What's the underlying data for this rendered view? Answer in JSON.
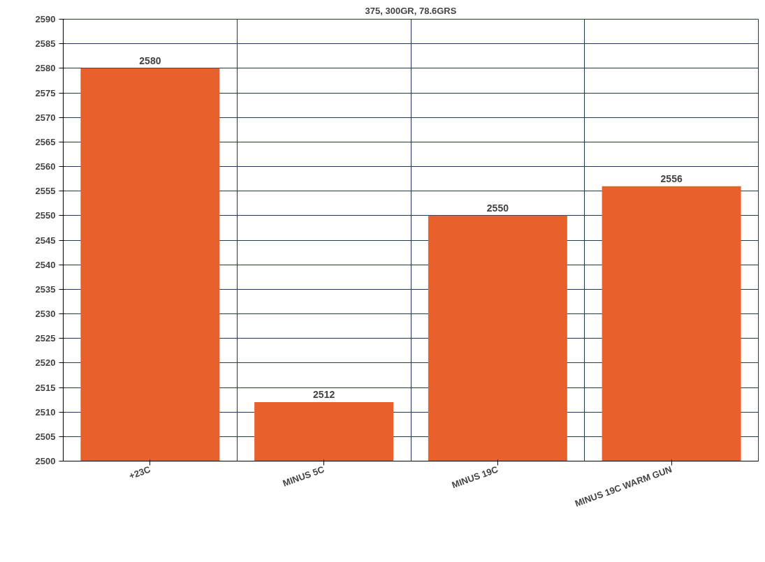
{
  "chart_data": {
    "type": "bar",
    "title": "375, 300GR, 78.6GRS",
    "categories": [
      "+23C",
      "MINUS 5C",
      "MINUS 19C",
      "MINUS 19C WARM GUN"
    ],
    "values": [
      2580,
      2512,
      2550,
      2556
    ],
    "color": "#e8602c",
    "ylim": [
      2500,
      2590
    ],
    "yticks": [
      2500,
      2505,
      2510,
      2515,
      2520,
      2525,
      2530,
      2535,
      2540,
      2545,
      2550,
      2555,
      2560,
      2565,
      2570,
      2575,
      2580,
      2585,
      2590
    ],
    "grid": true,
    "data_labels": true
  }
}
